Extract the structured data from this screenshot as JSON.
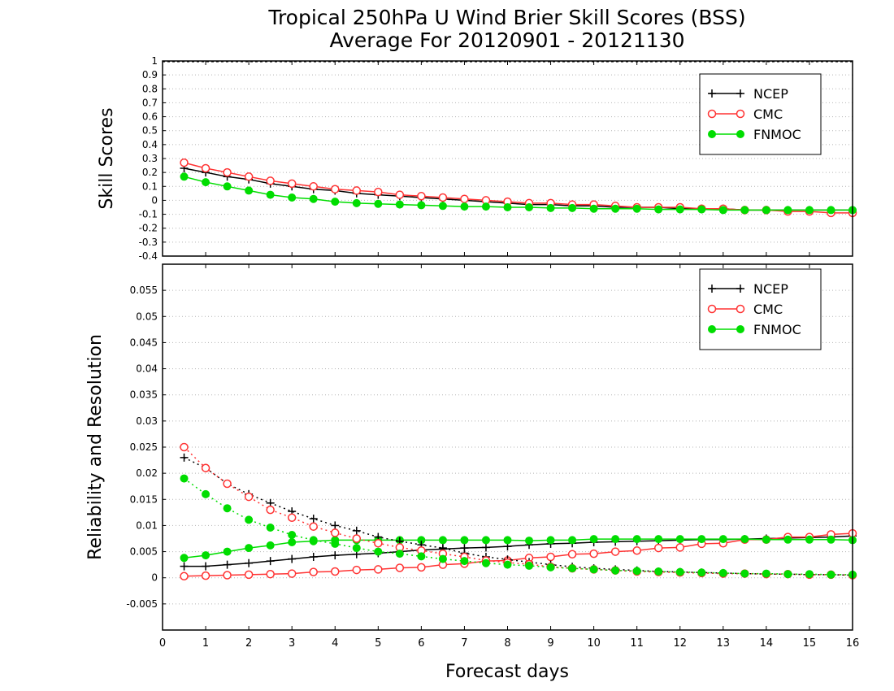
{
  "header": {
    "title_line1": "Tropical 250hPa U Wind Brier Skill Scores (BSS)",
    "title_line2": "Average For 20120901 - 20121130"
  },
  "xlabel": "Forecast days",
  "colors": {
    "NCEP": "#000000",
    "CMC": "#ff3333",
    "FNMOC": "#00dd00"
  },
  "chart_data": [
    {
      "type": "line",
      "ylabel": "Skill Scores",
      "xlim": [
        0,
        16
      ],
      "ylim": [
        -0.4,
        1
      ],
      "x_ticks": [
        "0",
        "1",
        "2",
        "3",
        "4",
        "5",
        "6",
        "7",
        "8",
        "9",
        "10",
        "11",
        "12",
        "13",
        "14",
        "15",
        "16"
      ],
      "y_ticks": [
        "-0.4",
        "-0.3",
        "-0.2",
        "-0.1",
        "0",
        "0.1",
        "0.2",
        "0.3",
        "0.4",
        "0.5",
        "0.6",
        "0.7",
        "0.8",
        "0.9",
        "1"
      ],
      "grid": true,
      "legend": "top-right",
      "x": [
        0.5,
        1,
        1.5,
        2,
        2.5,
        3,
        3.5,
        4,
        4.5,
        5,
        5.5,
        6,
        6.5,
        7,
        7.5,
        8,
        8.5,
        9,
        9.5,
        10,
        10.5,
        11,
        11.5,
        12,
        12.5,
        13,
        13.5,
        14,
        14.5,
        15,
        15.5,
        16
      ],
      "series": [
        {
          "name": "NCEP",
          "marker": "plus",
          "style": "solid",
          "values": [
            0.23,
            0.2,
            0.17,
            0.15,
            0.12,
            0.1,
            0.08,
            0.07,
            0.05,
            0.04,
            0.03,
            0.02,
            0.01,
            0.0,
            -0.01,
            -0.02,
            -0.03,
            -0.03,
            -0.04,
            -0.04,
            -0.05,
            -0.05,
            -0.05,
            -0.06,
            -0.06,
            -0.06,
            -0.07,
            -0.07,
            -0.07,
            -0.07,
            -0.07,
            -0.07
          ]
        },
        {
          "name": "CMC",
          "marker": "open-circle",
          "style": "solid",
          "values": [
            0.27,
            0.23,
            0.2,
            0.17,
            0.14,
            0.12,
            0.1,
            0.08,
            0.07,
            0.06,
            0.04,
            0.03,
            0.02,
            0.01,
            0.0,
            -0.01,
            -0.02,
            -0.02,
            -0.03,
            -0.03,
            -0.04,
            -0.05,
            -0.05,
            -0.05,
            -0.06,
            -0.06,
            -0.07,
            -0.07,
            -0.08,
            -0.08,
            -0.09,
            -0.09
          ]
        },
        {
          "name": "FNMOC",
          "marker": "filled-circle",
          "style": "solid",
          "values": [
            0.17,
            0.13,
            0.1,
            0.07,
            0.04,
            0.02,
            0.01,
            -0.01,
            -0.02,
            -0.025,
            -0.03,
            -0.035,
            -0.04,
            -0.045,
            -0.045,
            -0.05,
            -0.05,
            -0.055,
            -0.055,
            -0.06,
            -0.06,
            -0.06,
            -0.065,
            -0.065,
            -0.065,
            -0.07,
            -0.07,
            -0.07,
            -0.07,
            -0.07,
            -0.07,
            -0.07
          ]
        }
      ]
    },
    {
      "type": "line",
      "ylabel": "Reliability and Resolution",
      "xlim": [
        0,
        16
      ],
      "ylim": [
        -0.01,
        0.06
      ],
      "x_ticks": [
        "0",
        "1",
        "2",
        "3",
        "4",
        "5",
        "6",
        "7",
        "8",
        "9",
        "10",
        "11",
        "12",
        "13",
        "14",
        "15",
        "16"
      ],
      "y_ticks": [
        "-0.005",
        "0",
        "0.005",
        "0.01",
        "0.015",
        "0.02",
        "0.025",
        "0.03",
        "0.035",
        "0.04",
        "0.045",
        "0.05",
        "0.055"
      ],
      "grid": true,
      "legend": "top-right",
      "x": [
        0.5,
        1,
        1.5,
        2,
        2.5,
        3,
        3.5,
        4,
        4.5,
        5,
        5.5,
        6,
        6.5,
        7,
        7.5,
        8,
        8.5,
        9,
        9.5,
        10,
        10.5,
        11,
        11.5,
        12,
        12.5,
        13,
        13.5,
        14,
        14.5,
        15,
        15.5,
        16
      ],
      "series": [
        {
          "name": "NCEP",
          "marker": "plus",
          "style": "solid",
          "values": [
            0.0022,
            0.0022,
            0.0025,
            0.0028,
            0.0032,
            0.0036,
            0.004,
            0.0043,
            0.0045,
            0.0047,
            0.005,
            0.0053,
            0.0055,
            0.0057,
            0.0058,
            0.006,
            0.0063,
            0.0065,
            0.0066,
            0.0068,
            0.0069,
            0.007,
            0.0071,
            0.0072,
            0.0073,
            0.0073,
            0.0074,
            0.0075,
            0.0076,
            0.0077,
            0.0078,
            0.008
          ]
        },
        {
          "name": "CMC",
          "marker": "open-circle",
          "style": "solid",
          "values": [
            0.0003,
            0.0004,
            0.0005,
            0.0006,
            0.0007,
            0.0008,
            0.0011,
            0.0012,
            0.0015,
            0.0016,
            0.0019,
            0.002,
            0.0025,
            0.0027,
            0.0032,
            0.0033,
            0.0038,
            0.004,
            0.0045,
            0.0046,
            0.005,
            0.0052,
            0.0057,
            0.0058,
            0.0065,
            0.0066,
            0.0073,
            0.0073,
            0.0078,
            0.0078,
            0.0083,
            0.0085
          ]
        },
        {
          "name": "FNMOC",
          "marker": "filled-circle",
          "style": "solid",
          "values": [
            0.0038,
            0.0043,
            0.005,
            0.0057,
            0.0062,
            0.0068,
            0.007,
            0.0072,
            0.0072,
            0.0072,
            0.0072,
            0.0072,
            0.0072,
            0.0072,
            0.0072,
            0.0072,
            0.0071,
            0.0072,
            0.0072,
            0.0074,
            0.0074,
            0.0074,
            0.0074,
            0.0074,
            0.0074,
            0.0074,
            0.0074,
            0.0073,
            0.0073,
            0.0073,
            0.0073,
            0.0072
          ]
        },
        {
          "name": "NCEP",
          "marker": "plus",
          "style": "dotted",
          "values": [
            0.023,
            0.021,
            0.018,
            0.016,
            0.0143,
            0.0127,
            0.0113,
            0.01,
            0.009,
            0.0078,
            0.007,
            0.0063,
            0.0057,
            0.0047,
            0.004,
            0.0035,
            0.003,
            0.0025,
            0.0021,
            0.0018,
            0.0016,
            0.0014,
            0.0012,
            0.0011,
            0.001,
            0.0009,
            0.0008,
            0.0007,
            0.0007,
            0.0006,
            0.0006,
            0.0005
          ]
        },
        {
          "name": "CMC",
          "marker": "open-circle",
          "style": "dotted",
          "values": [
            0.025,
            0.021,
            0.018,
            0.0155,
            0.013,
            0.0115,
            0.0098,
            0.0086,
            0.0075,
            0.0066,
            0.0058,
            0.0052,
            0.0046,
            0.004,
            0.0033,
            0.0029,
            0.0026,
            0.0021,
            0.0018,
            0.0016,
            0.0014,
            0.0012,
            0.0011,
            0.001,
            0.0009,
            0.0008,
            0.0008,
            0.0007,
            0.0007,
            0.0006,
            0.0006,
            0.0005
          ]
        },
        {
          "name": "FNMOC",
          "marker": "filled-circle",
          "style": "dotted",
          "values": [
            0.019,
            0.016,
            0.0133,
            0.0111,
            0.0096,
            0.0082,
            0.0072,
            0.0065,
            0.0057,
            0.005,
            0.0046,
            0.0041,
            0.0036,
            0.0032,
            0.0028,
            0.0025,
            0.0023,
            0.002,
            0.0018,
            0.0016,
            0.0014,
            0.0013,
            0.0012,
            0.0011,
            0.001,
            0.0009,
            0.0008,
            0.0008,
            0.0007,
            0.0007,
            0.0006,
            0.0006
          ]
        }
      ]
    }
  ]
}
